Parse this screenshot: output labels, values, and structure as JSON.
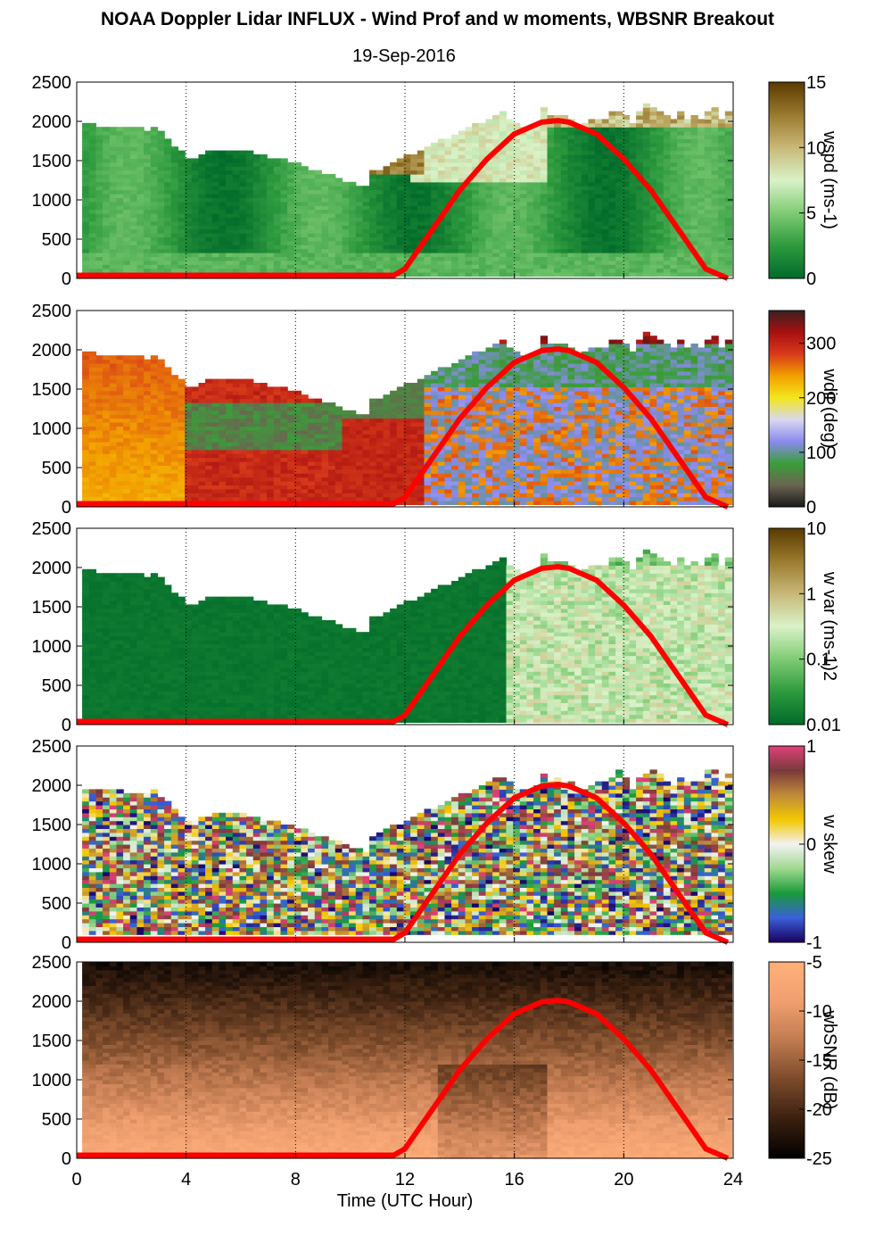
{
  "title": "NOAA Doppler Lidar INFLUX - Wind Prof and w moments, WBSNR Breakout",
  "subtitle": "19-Sep-2016",
  "xlabel": "Time (UTC Hour)",
  "xticks": [
    "0",
    "4",
    "8",
    "12",
    "16",
    "20",
    "24"
  ],
  "yticks": [
    "0",
    "500",
    "1000",
    "1500",
    "2000",
    "2500"
  ],
  "colors": {
    "overlay_line": "#ff0000",
    "wspd": [
      "#006b2a",
      "#2e9a3e",
      "#7fcb74",
      "#d9f2c8",
      "#c8b878",
      "#9a7a2e",
      "#5a3a00"
    ],
    "wdir": [
      "#1a1a1a",
      "#6b6450",
      "#3a9e3a",
      "#8a8aee",
      "#d8d8f0",
      "#f2e61a",
      "#f2a000",
      "#d83a1a",
      "#a81010",
      "#3a2020"
    ],
    "wvar": [
      "#006b2a",
      "#2e9a3e",
      "#7fcb74",
      "#d9f2c8",
      "#c8b878",
      "#9a7a2e",
      "#5a3a00"
    ],
    "wskew": [
      "#1a0060",
      "#3a60d8",
      "#1a9a3a",
      "#a0d890",
      "#f2f2f2",
      "#f2c800",
      "#c08a3a",
      "#7a3a3a",
      "#e0407a"
    ],
    "wbsnr": [
      "#000000",
      "#3a2010",
      "#7a4a2a",
      "#c07a50",
      "#f0a070",
      "#ffb07a"
    ]
  },
  "chart_data": [
    {
      "type": "heatmap",
      "variable": "wspd",
      "x_range": [
        0,
        24
      ],
      "y_range": [
        0,
        2500
      ],
      "colorbar": {
        "label": "wspd (ms-1)",
        "ticks": [
          "0",
          "5",
          "10",
          "15"
        ],
        "range": [
          0,
          15
        ]
      },
      "overlay": {
        "x": [
          0,
          11.6,
          12,
          13,
          14,
          15,
          16,
          17,
          17.6,
          18,
          19,
          20,
          21,
          22,
          23,
          23.8
        ],
        "y": [
          40,
          40,
          120,
          620,
          1120,
          1520,
          1840,
          1990,
          2010,
          1990,
          1840,
          1520,
          1120,
          620,
          120,
          0
        ]
      }
    },
    {
      "type": "heatmap",
      "variable": "wdir",
      "x_range": [
        0,
        24
      ],
      "y_range": [
        0,
        2500
      ],
      "colorbar": {
        "label": "wdir (deg)",
        "ticks": [
          "0",
          "100",
          "200",
          "300"
        ],
        "range": [
          0,
          360
        ]
      },
      "overlay": {
        "x": [
          0,
          11.6,
          12,
          13,
          14,
          15,
          16,
          17,
          17.6,
          18,
          19,
          20,
          21,
          22,
          23,
          23.8
        ],
        "y": [
          40,
          40,
          120,
          620,
          1120,
          1520,
          1840,
          1990,
          2010,
          1990,
          1840,
          1520,
          1120,
          620,
          120,
          0
        ]
      }
    },
    {
      "type": "heatmap",
      "variable": "w var",
      "x_range": [
        0,
        24
      ],
      "y_range": [
        0,
        2500
      ],
      "colorbar": {
        "label": "w var (ms-1)2",
        "ticks": [
          "0.01",
          "0.1",
          "1",
          "10"
        ],
        "range": [
          0.01,
          10
        ],
        "scale": "log"
      },
      "overlay": {
        "x": [
          0,
          11.6,
          12,
          13,
          14,
          15,
          16,
          17,
          17.6,
          18,
          19,
          20,
          21,
          22,
          23,
          23.8
        ],
        "y": [
          40,
          40,
          120,
          620,
          1120,
          1520,
          1840,
          1990,
          2010,
          1990,
          1840,
          1520,
          1120,
          620,
          120,
          0
        ]
      }
    },
    {
      "type": "heatmap",
      "variable": "w skew",
      "x_range": [
        0,
        24
      ],
      "y_range": [
        0,
        2500
      ],
      "colorbar": {
        "label": "w skew",
        "ticks": [
          "-1",
          "0",
          "1"
        ],
        "range": [
          -1,
          1
        ]
      },
      "overlay": {
        "x": [
          0,
          11.6,
          12,
          13,
          14,
          15,
          16,
          17,
          17.6,
          18,
          19,
          20,
          21,
          22,
          23,
          23.8
        ],
        "y": [
          40,
          40,
          120,
          620,
          1120,
          1520,
          1840,
          1990,
          2010,
          1990,
          1840,
          1520,
          1120,
          620,
          120,
          0
        ]
      }
    },
    {
      "type": "heatmap",
      "variable": "wbSNR",
      "x_range": [
        0,
        24
      ],
      "y_range": [
        0,
        2500
      ],
      "colorbar": {
        "label": "wbSNR (dB)",
        "ticks": [
          "-25",
          "-20",
          "-15",
          "-10",
          "-5"
        ],
        "range": [
          -25,
          -5
        ]
      },
      "overlay": {
        "x": [
          0,
          11.6,
          12,
          13,
          14,
          15,
          16,
          17,
          17.6,
          18,
          19,
          20,
          21,
          22,
          23,
          23.8
        ],
        "y": [
          40,
          40,
          120,
          620,
          1120,
          1520,
          1840,
          1990,
          2010,
          1990,
          1840,
          1520,
          1120,
          620,
          120,
          0
        ]
      }
    }
  ]
}
